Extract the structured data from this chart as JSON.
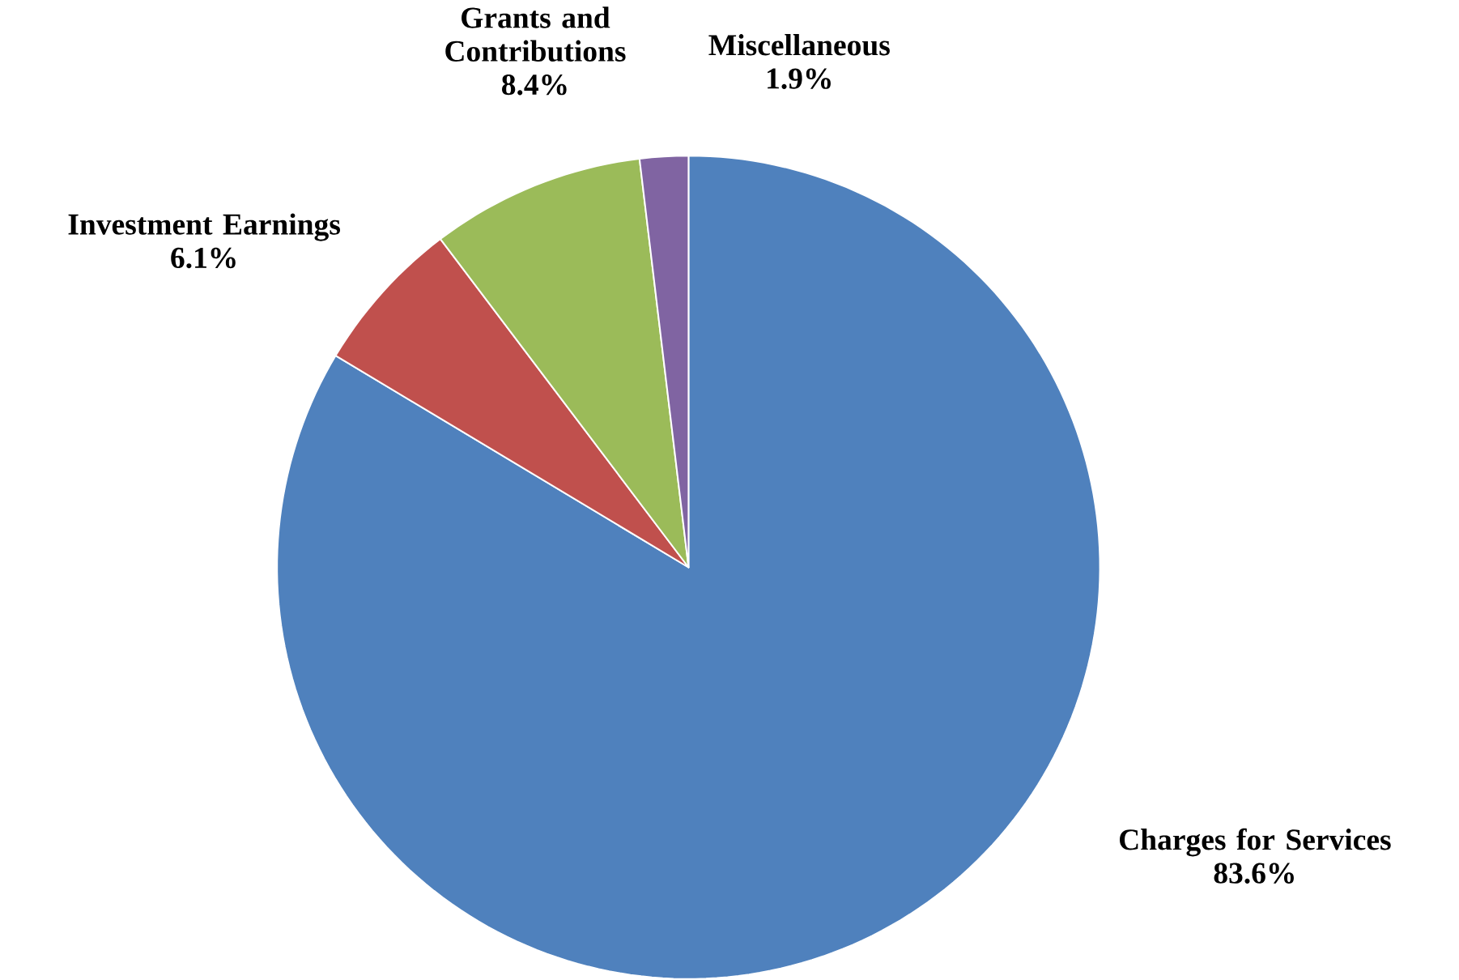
{
  "chart_data": {
    "type": "pie",
    "categories": [
      "Charges for Services",
      "Investment Earnings",
      "Grants and Contributions",
      "Miscellaneous"
    ],
    "values": [
      83.6,
      6.1,
      8.4,
      1.9
    ],
    "value_labels": [
      "83.6%",
      "6.1%",
      "8.4%",
      "1.9%"
    ],
    "colors": [
      "#4f81bd",
      "#c0504d",
      "#9bbb59",
      "#8064a2"
    ]
  }
}
